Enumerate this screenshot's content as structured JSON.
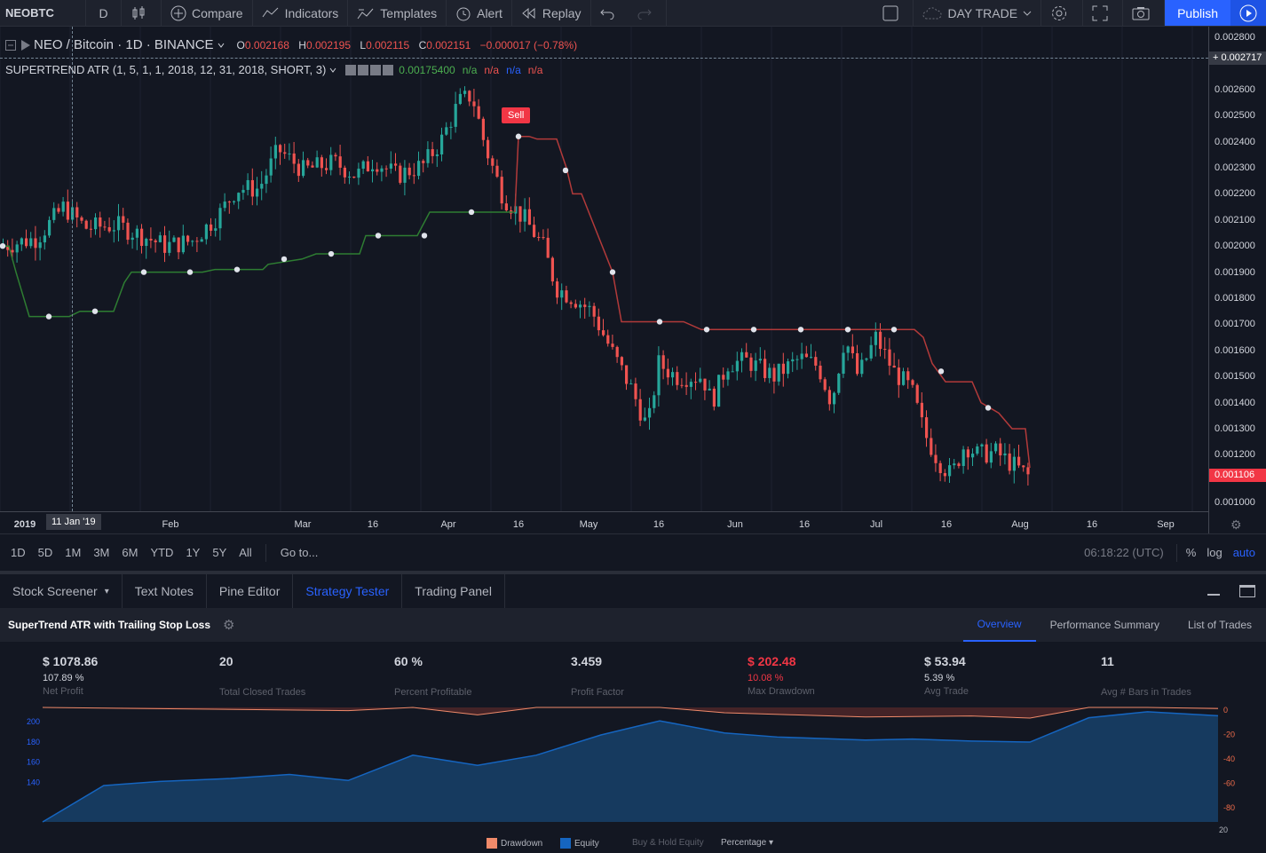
{
  "toolbar": {
    "symbol": "NEOBTC",
    "interval": "D",
    "compare": "Compare",
    "indicators": "Indicators",
    "templates": "Templates",
    "alert": "Alert",
    "replay": "Replay",
    "layout_name": "DAY TRADE",
    "publish": "Publish"
  },
  "legend": {
    "symbol_title": "NEO / Bitcoin · 1D · BINANCE",
    "open_key": "O",
    "open": "0.002168",
    "high_key": "H",
    "high": "0.002195",
    "low_key": "L",
    "low": "0.002115",
    "close_key": "C",
    "close": "0.002151",
    "change": "−0.000017 (−0.78%)",
    "indicator": "SUPERTREND ATR (1, 5, 1, 1, 2018, 12, 31, 2018, SHORT, 3)",
    "indicator_value": "0.00175400",
    "na1": "n/a",
    "na2": "n/a",
    "na3": "n/a",
    "na4": "n/a",
    "sell_label": "Sell"
  },
  "price_axis": {
    "ticks": [
      "0.002800",
      "0.002600",
      "0.002500",
      "0.002400",
      "0.002300",
      "0.002200",
      "0.002100",
      "0.002000",
      "0.001900",
      "0.001800",
      "0.001700",
      "0.001600",
      "0.001500",
      "0.001400",
      "0.001300",
      "0.001200",
      "0.001000"
    ],
    "crosshair_price": "0.002717",
    "last_price": "0.001106"
  },
  "time_axis": {
    "labels": [
      "2019",
      "Feb",
      "Mar",
      "16",
      "Apr",
      "16",
      "May",
      "16",
      "Jun",
      "16",
      "Jul",
      "16",
      "Aug",
      "16",
      "Sep"
    ],
    "crosshair_date": "11 Jan '19"
  },
  "range_bar": {
    "ranges": [
      "1D",
      "5D",
      "1M",
      "3M",
      "6M",
      "YTD",
      "1Y",
      "5Y",
      "All"
    ],
    "goto": "Go to...",
    "clock": "06:18:22 (UTC)",
    "percent": "%",
    "log": "log",
    "auto": "auto"
  },
  "panel_tabs": [
    "Stock Screener",
    "Text Notes",
    "Pine Editor",
    "Strategy Tester",
    "Trading Panel"
  ],
  "strategy": {
    "title": "SuperTrend ATR with Trailing Stop Loss",
    "tabs": [
      "Overview",
      "Performance Summary",
      "List of Trades"
    ],
    "stats": [
      {
        "main": "$ 1078.86",
        "sub": "107.89 %",
        "label": "Net Profit"
      },
      {
        "main": "20",
        "sub": "",
        "label": "Total Closed Trades"
      },
      {
        "main": "60 %",
        "sub": "",
        "label": "Percent Profitable"
      },
      {
        "main": "3.459",
        "sub": "",
        "label": "Profit Factor"
      },
      {
        "main": "$ 202.48",
        "sub": "10.08 %",
        "label": "Max Drawdown"
      },
      {
        "main": "$ 53.94",
        "sub": "5.39 %",
        "label": "Avg Trade"
      },
      {
        "main": "11",
        "sub": "",
        "label": "Avg # Bars in Trades"
      }
    ],
    "equity_left_ticks": [
      "200",
      "180",
      "160",
      "140"
    ],
    "equity_right_ticks": [
      "0",
      "-20",
      "-40",
      "-60",
      "-80"
    ],
    "x_end_label": "20",
    "legend": {
      "drawdown": "Drawdown",
      "equity": "Equity",
      "buyhold": "Buy & Hold Equity",
      "mode": "Percentage"
    }
  },
  "colors": {
    "up": "#26a69a",
    "down": "#ef5350",
    "st_long": "#2e7d32",
    "st_short": "#b23a3a",
    "accent": "#2962ff",
    "equity": "#1565c0",
    "drawdown": "#ef8a6a"
  }
}
